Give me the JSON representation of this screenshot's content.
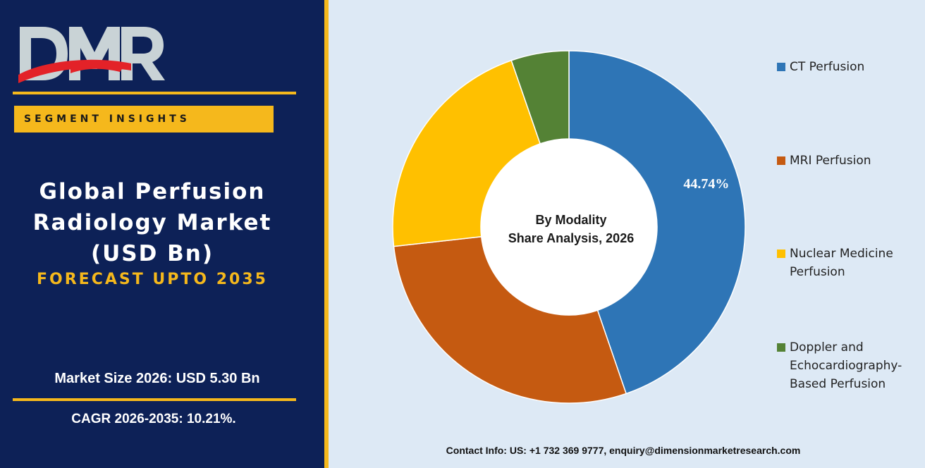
{
  "brand": {
    "logo_text": "DMR"
  },
  "left": {
    "segment_label": "SEGMENT INSIGHTS",
    "title_line1": "Global Perfusion",
    "title_line2": "Radiology Market",
    "title_line3": "(USD Bn)",
    "subtitle": "FORECAST UPTO 2035",
    "market_size": "Market Size 2026: USD 5.30 Bn",
    "cagr": "CAGR 2026-2035: 10.21%."
  },
  "contact": "Contact Info: US: +1 732 369 9777, enquiry@dimensionmarketresearch.com",
  "colors": {
    "navy": "#0d2157",
    "gold": "#f5b81c",
    "panel_bg": "#dde9f5",
    "logo_grey": "#c9d3d6",
    "logo_red": "#e32228"
  },
  "chart_data": {
    "type": "pie",
    "donut": true,
    "center_label_line1": "By Modality",
    "center_label_line2": "Share Analysis, 2026",
    "legend_position": "right",
    "categories": [
      "CT Perfusion",
      "MRI Perfusion",
      "Nuclear Medicine Perfusion",
      "Doppler and Echocardiography-Based Perfusion"
    ],
    "legend_labels": [
      "CT Perfusion",
      "MRI Perfusion",
      "Nuclear Medicine\nPerfusion",
      "Doppler and\nEchocardiography-\nBased Perfusion"
    ],
    "values": [
      44.74,
      28.5,
      21.46,
      5.3
    ],
    "colors": [
      "#2e75b6",
      "#c55a11",
      "#ffc000",
      "#548235"
    ],
    "data_labels": [
      "44.74%",
      null,
      null,
      null
    ]
  }
}
